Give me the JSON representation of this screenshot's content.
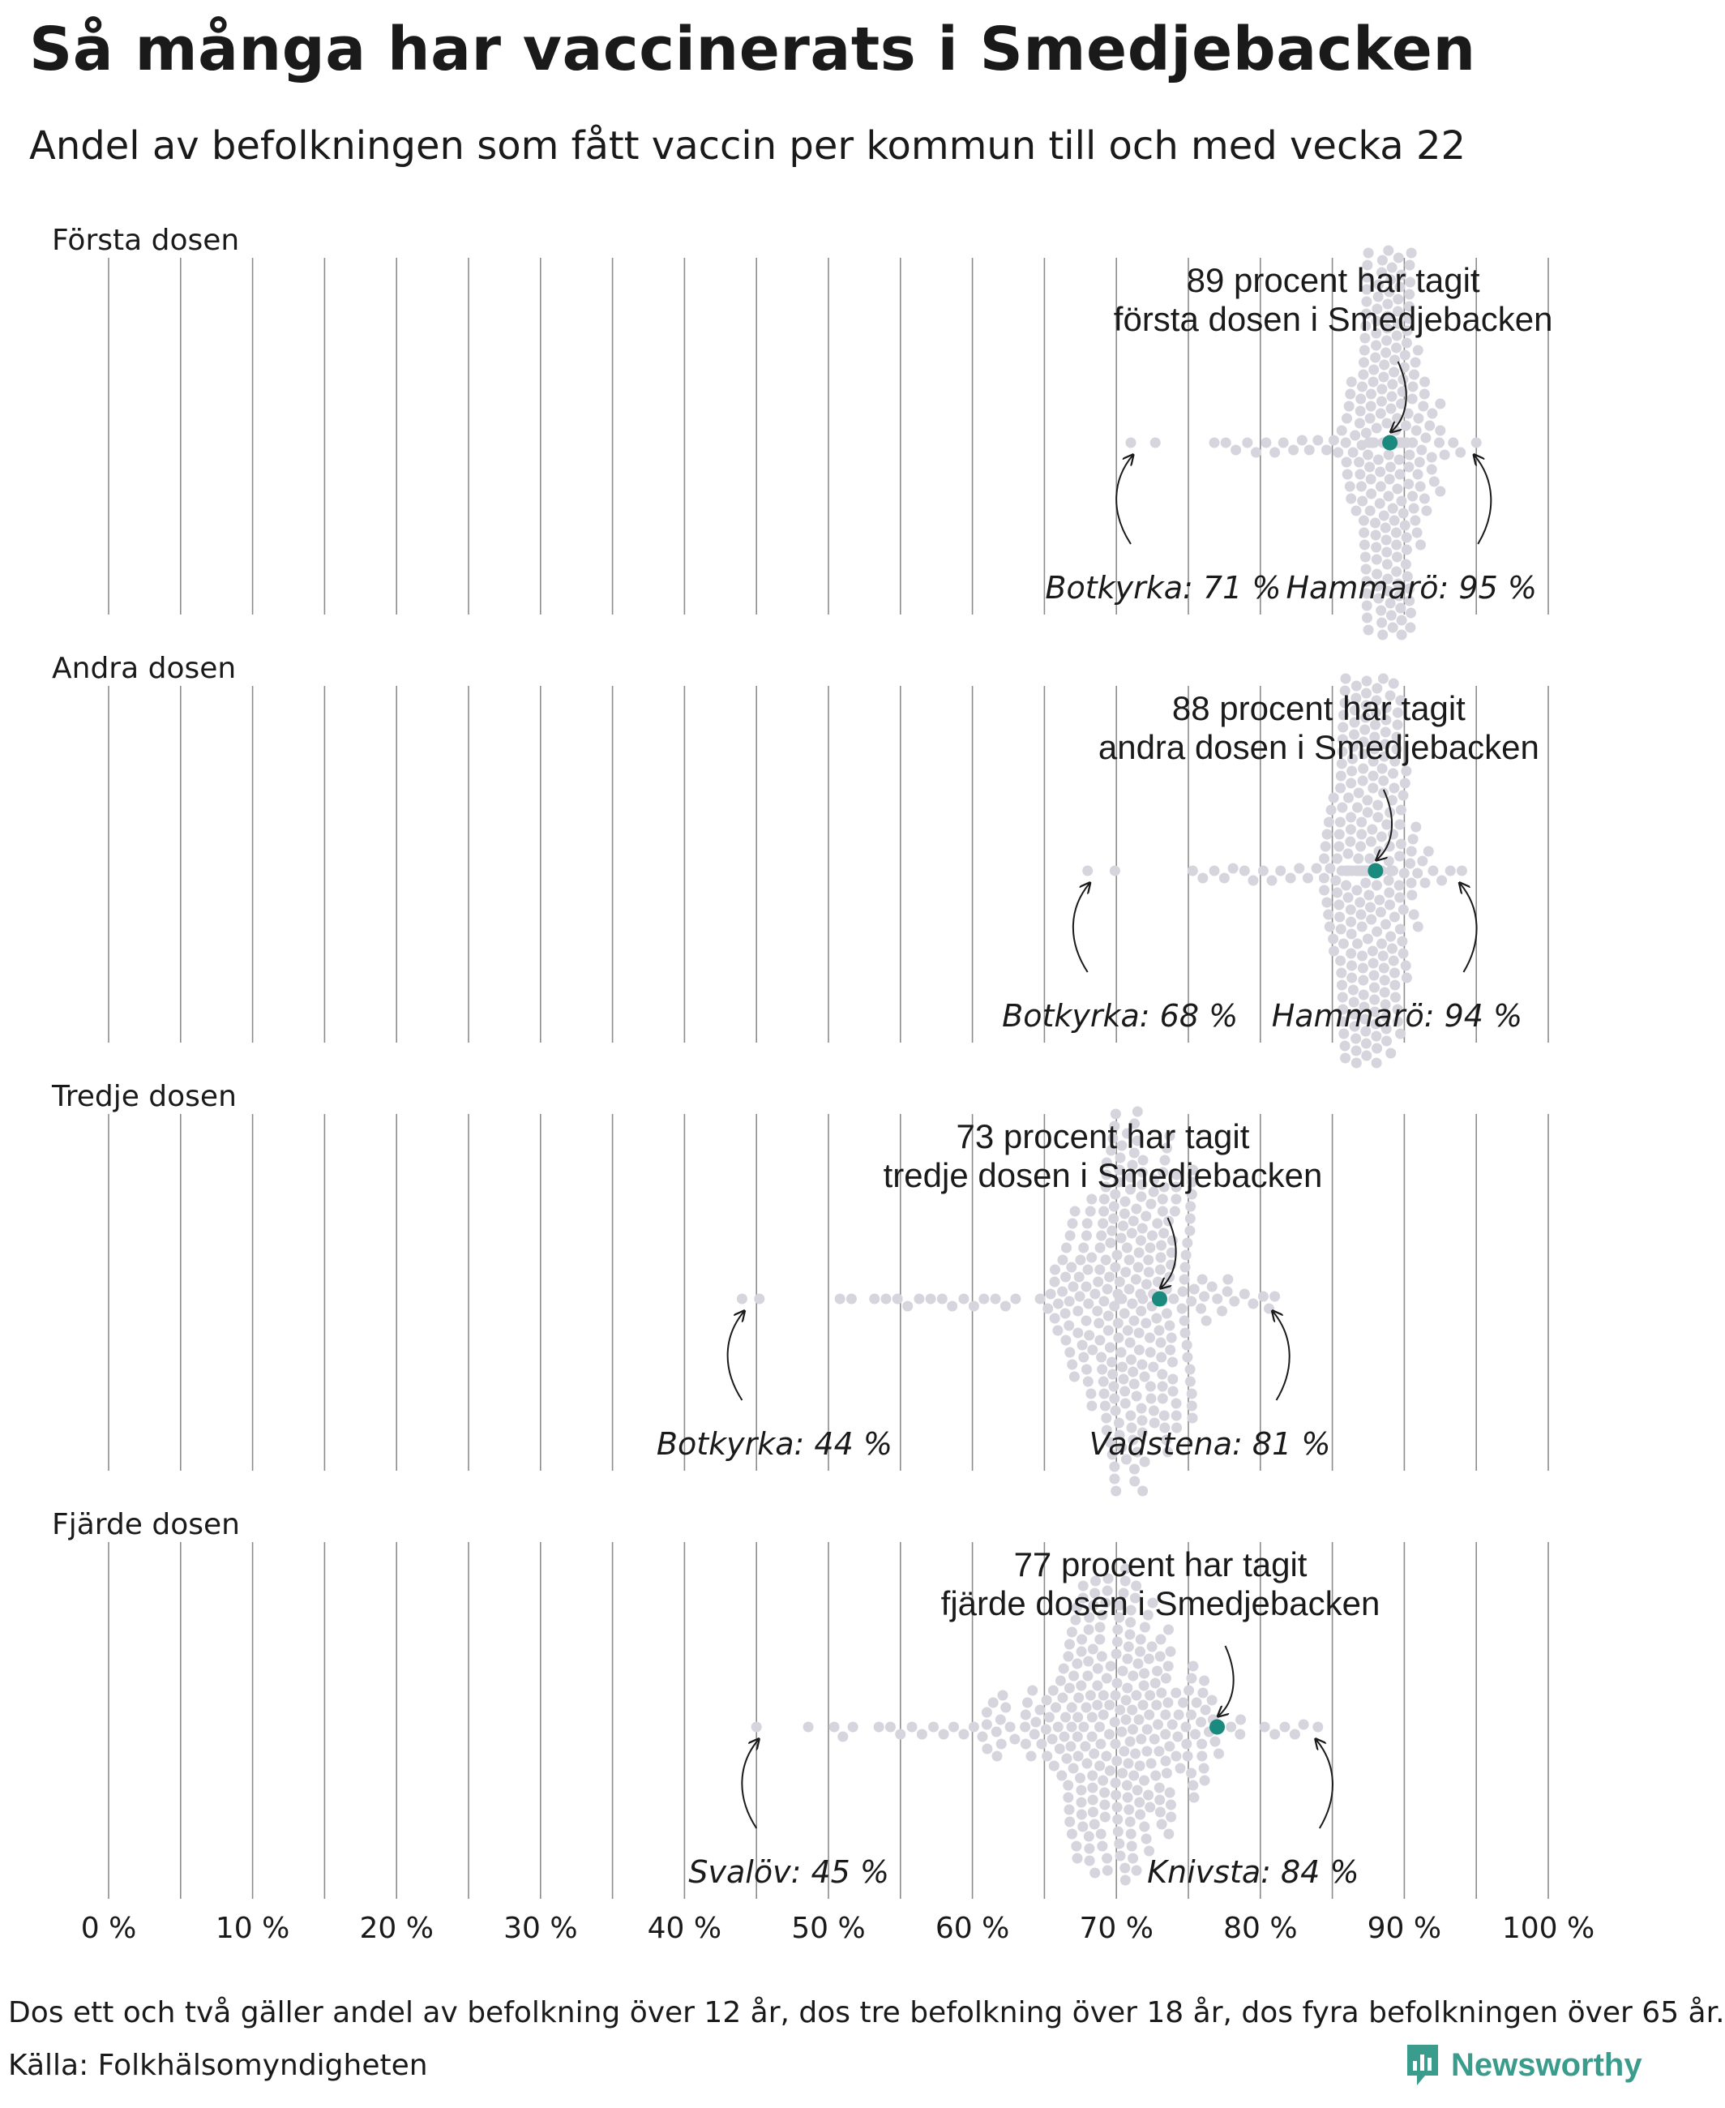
{
  "title": "Så många har vaccinerats i Smedjebacken",
  "subtitle": "Andel av befolkningen som fått vaccin per kommun till och med vecka 22",
  "notes": "Dos ett och två gäller andel av befolkning över 12 år, dos tre befolkning över 18 år, dos fyra befolkningen över 65 år.",
  "source": "Källa: Folkhälsomyndigheten",
  "brand": "Newsworthy",
  "colors": {
    "dot": "#d6d4dc",
    "highlight": "#1a8a7e",
    "grid": "#8c8c8c",
    "text": "#1a1a1a",
    "brand": "#3a9c8c"
  },
  "chart_data": {
    "type": "scatter",
    "style": "beeswarm",
    "x_unit": "%",
    "xlim": [
      0,
      100
    ],
    "x_ticks": [
      "0 %",
      "10 %",
      "20 %",
      "30 %",
      "40 %",
      "50 %",
      "60 %",
      "70 %",
      "80 %",
      "90 %",
      "100 %"
    ],
    "grid": true,
    "panels": [
      {
        "label": "Första dosen",
        "highlight": {
          "name": "Smedjebacken",
          "value": 89,
          "line1": "89 procent har tagit",
          "line2": "första dosen i Smedjebacken"
        },
        "min": {
          "name": "Botkyrka",
          "value": 71,
          "label": "Botkyrka: 71 %"
        },
        "max": {
          "name": "Hammarö",
          "value": 95,
          "label": "Hammarö: 95 %"
        },
        "typical": 89,
        "spread": 2.0,
        "left_tail": [
          72.7,
          76.8,
          77.6,
          78.3,
          79.1,
          79.7,
          80.4,
          81.0,
          81.6,
          82.3,
          82.9,
          83.4,
          84.0,
          84.6,
          85.1
        ],
        "right_tail": [
          92.8,
          93.4,
          93.9
        ]
      },
      {
        "label": "Andra dosen",
        "highlight": {
          "name": "Smedjebacken",
          "value": 88,
          "line1": "88 procent har tagit",
          "line2": "andra dosen i Smedjebacken"
        },
        "min": {
          "name": "Botkyrka",
          "value": 68,
          "label": "Botkyrka: 68 %"
        },
        "max": {
          "name": "Hammarö",
          "value": 94,
          "label": "Hammarö: 94 %"
        },
        "typical": 87.5,
        "spread": 2.3,
        "left_tail": [
          69.9,
          75.3,
          76.0,
          76.8,
          77.5,
          78.1,
          78.9,
          79.5,
          80.2,
          80.8,
          81.4,
          82.1,
          82.7,
          83.3,
          83.9
        ],
        "right_tail": [
          92.0,
          92.6,
          93.2
        ]
      },
      {
        "label": "Tredje dosen",
        "highlight": {
          "name": "Smedjebacken",
          "value": 73,
          "line1": "73 procent har tagit",
          "line2": "tredje dosen i Smedjebacken"
        },
        "min": {
          "name": "Botkyrka",
          "value": 44,
          "label": "Botkyrka: 44 %"
        },
        "max": {
          "name": "Vadstena",
          "value": 81,
          "label": "Vadstena: 81 %"
        },
        "typical": 71.2,
        "spread": 3.6,
        "left_tail": [
          45.2,
          50.8,
          51.6,
          53.2,
          54.0,
          54.8,
          55.5,
          56.3,
          57.1,
          57.9,
          58.6,
          59.4,
          60.1,
          60.8,
          61.6,
          62.3,
          63.0
        ],
        "right_tail": [
          78.2,
          78.9,
          79.5,
          80.2,
          80.6
        ]
      },
      {
        "label": "Fjärde dosen",
        "highlight": {
          "name": "Smedjebacken",
          "value": 77,
          "line1": "77 procent har tagit",
          "line2": "fjärde dosen i Smedjebacken"
        },
        "min": {
          "name": "Svalöv",
          "value": 45,
          "label": "Svalöv: 45 %"
        },
        "max": {
          "name": "Knivsta",
          "value": 84,
          "label": "Knivsta: 84 %"
        },
        "typical": 70.0,
        "spread": 5.2,
        "left_tail": [
          48.6,
          50.4,
          51.0,
          51.7,
          53.5,
          54.3,
          55.0,
          55.8,
          56.5,
          57.3,
          58.0,
          58.7,
          59.4,
          60.1,
          60.7
        ],
        "right_tail": [
          80.3,
          81.0,
          81.7,
          82.4,
          83.0
        ]
      }
    ]
  }
}
